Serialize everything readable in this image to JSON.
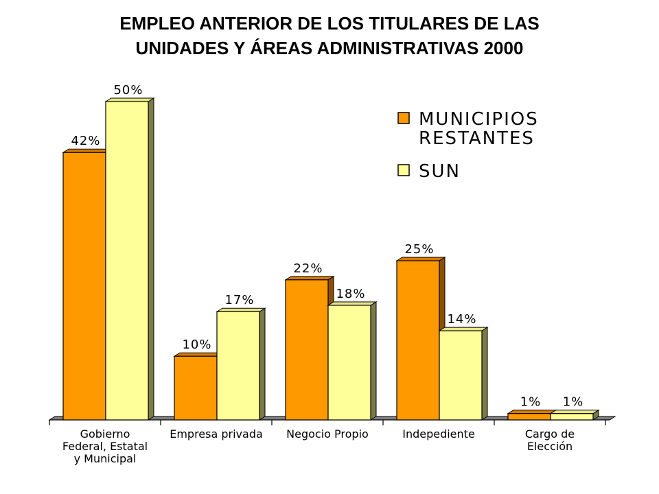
{
  "title_line1": "EMPLEO ANTERIOR DE LOS TITULARES DE LAS",
  "title_line2": "UNIDADES Y ÁREAS ADMINISTRATIVAS 2000",
  "chart_data": {
    "type": "bar",
    "title": "EMPLEO ANTERIOR DE LOS TITULARES DE LAS UNIDADES Y ÁREAS ADMINISTRATIVAS 2000",
    "categories": [
      [
        "Gobierno",
        "Federal, Estatal",
        "y Municipal"
      ],
      [
        "Empresa privada"
      ],
      [
        "Negocio Propio"
      ],
      [
        "Indepediente"
      ],
      [
        "Cargo de",
        "Elección"
      ]
    ],
    "series": [
      {
        "name": "MUNICIPIOS RESTANTES",
        "legend_lines": [
          "MUNICIPIOS",
          "RESTANTES"
        ],
        "values": [
          42,
          10,
          22,
          25,
          1
        ],
        "labels": [
          "42%",
          "10%",
          "22%",
          "25%",
          "1%"
        ],
        "color": "#ff9900",
        "top_color": "#d77a00",
        "side_color": "#8a4f00"
      },
      {
        "name": "SUN",
        "legend_lines": [
          "SUN"
        ],
        "values": [
          50,
          17,
          18,
          14,
          1
        ],
        "labels": [
          "50%",
          "17%",
          "18%",
          "14%",
          "1%"
        ],
        "color": "#ffff99",
        "top_color": "#e6e68a",
        "side_color": "#7a7a4a"
      }
    ],
    "ylim": [
      0,
      50
    ],
    "legend_position": "top-right",
    "grid": false
  }
}
